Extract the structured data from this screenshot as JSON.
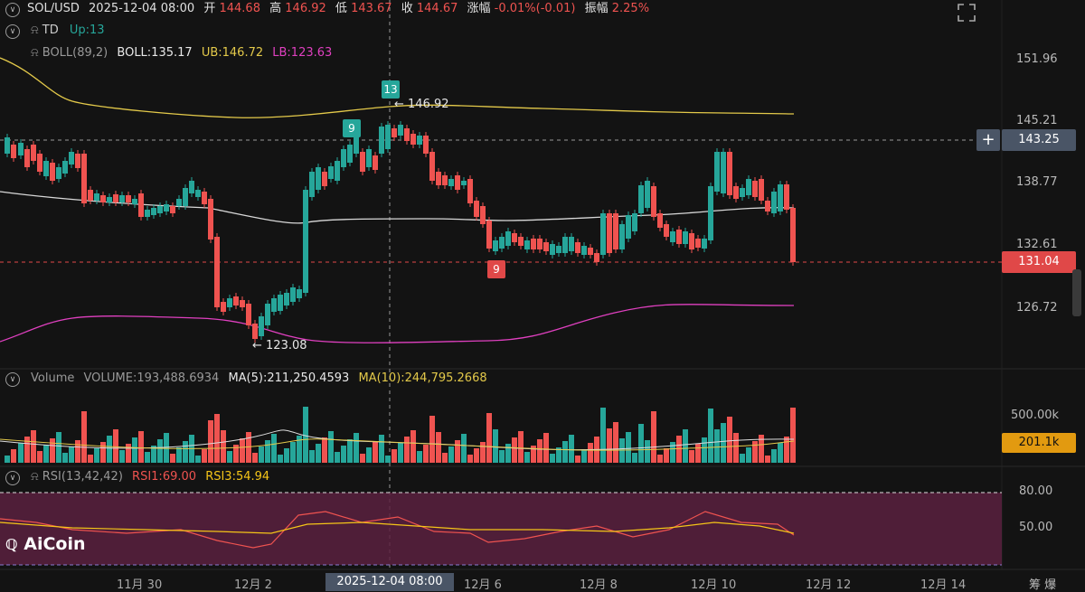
{
  "header": {
    "symbol": "SOL/USD",
    "datetime": "2025-12-04 08:00",
    "open_label": "开",
    "open": "144.68",
    "high_label": "高",
    "high": "146.92",
    "low_label": "低",
    "low": "143.67",
    "close_label": "收",
    "close": "144.67",
    "change_label": "涨幅",
    "change": "-0.01%(-0.01)",
    "amp_label": "振幅",
    "amp": "2.25%"
  },
  "td": {
    "name": "TD",
    "value": "Up:13"
  },
  "boll": {
    "name": "BOLL(89,2)",
    "mid": "BOLL:135.17",
    "ub": "UB:146.72",
    "lb": "LB:123.63"
  },
  "price_axis": [
    "151.96",
    "145.21",
    "138.77",
    "132.61",
    "126.72"
  ],
  "crosshair_price": "143.25",
  "last_price": "131.04",
  "annotations": {
    "high": "146.92",
    "low": "123.08",
    "td_13": "13",
    "td_9_green": "9",
    "td_9_red": "9"
  },
  "volume": {
    "name": "Volume",
    "value": "VOLUME:193,488.6934",
    "ma5": "MA(5):211,250.4593",
    "ma10": "MA(10):244,795.2668",
    "axis_label": "500.00k",
    "current": "201.1k"
  },
  "rsi": {
    "name": "RSI(13,42,42)",
    "rsi1": "RSI1:69.00",
    "rsi3": "RSI3:54.94",
    "level_high": "80.00",
    "level_mid": "50.00"
  },
  "date_axis": {
    "ticks": [
      "11月 30",
      "12月 2",
      "12月 6",
      "12月 8",
      "12月 10",
      "12月 12",
      "12月 14"
    ],
    "highlight": "2025-12-04 08:00"
  },
  "watermark": "AiCoin",
  "footer_right": "筹 爆",
  "colors": {
    "up": "#26a69a",
    "down": "#ef5350",
    "boll_ub": "#e3c94a",
    "boll_mid": "#d8d8d8",
    "boll_lb": "#e040c0",
    "rsi1": "#ef5350",
    "rsi3": "#f5c518",
    "rsi_band": "#5a2140"
  }
}
